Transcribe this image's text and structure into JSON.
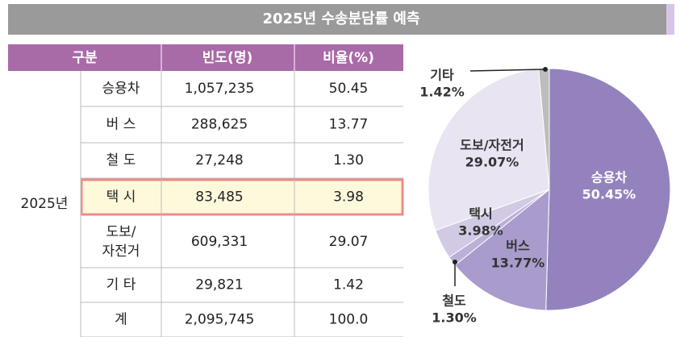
{
  "title": "2025년 수송분담률 예측",
  "table": {
    "header": [
      "구분",
      "빈도(명)",
      "비율(%)"
    ],
    "group": "2025년",
    "rows": [
      [
        "승용차",
        "1,057,235",
        "50.45"
      ],
      [
        "버 스",
        "288,625",
        "13.77"
      ],
      [
        "철 도",
        "27,248",
        "1.30"
      ],
      [
        "택 시",
        "83,485",
        "3.98"
      ],
      [
        "도보/\n자전거",
        "609,331",
        "29.07"
      ],
      [
        "기 타",
        "29,821",
        "1.42"
      ],
      [
        "계",
        "2,095,745",
        "100.0"
      ]
    ]
  },
  "chart_data": {
    "type": "pie",
    "categories": [
      "승용차",
      "버스",
      "철도",
      "택시",
      "도보/자전거",
      "기타"
    ],
    "values": [
      50.45,
      13.77,
      1.3,
      3.98,
      29.07,
      1.42
    ],
    "value_labels": [
      "50.45%",
      "13.77%",
      "1.30%",
      "3.98%",
      "29.07%",
      "1.42%"
    ],
    "colors": [
      "#9482be",
      "#a99ccc",
      "#bbb0d8",
      "#d2cae5",
      "#e8e4f1",
      "#bdbdbd"
    ]
  }
}
